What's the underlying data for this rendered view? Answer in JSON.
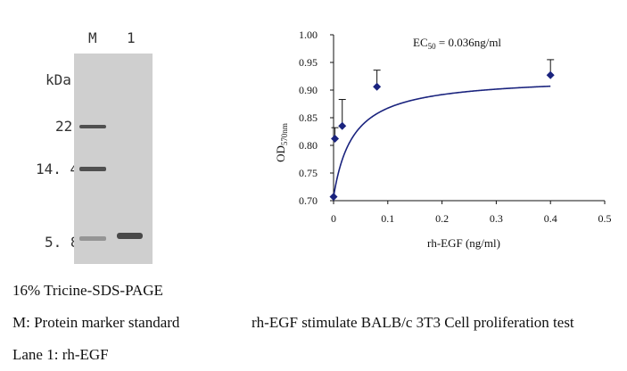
{
  "gel": {
    "lane_header_marker": "M",
    "lane_header_sample": "1",
    "unit_label": "kDa",
    "marker_labels": [
      "22",
      "14. 4",
      "5. 8"
    ],
    "marker_bands_kda": [
      22,
      14.4,
      5.8
    ],
    "sample_band_kda": 5.8,
    "background_color": "#cfcfcf",
    "band_color": "#3a3a3a"
  },
  "captions": {
    "line1": "16% Tricine-SDS-PAGE",
    "line2": "M: Protein marker standard",
    "line3": "Lane 1: rh-EGF",
    "chart_caption": "rh-EGF stimulate BALB/c 3T3 Cell proliferation test"
  },
  "chart_data": {
    "type": "scatter",
    "title": "",
    "annotation_prefix": "EC",
    "annotation_sub": "50",
    "annotation_suffix": " = 0.036ng/ml",
    "xlabel": "rh-EGF (ng/ml)",
    "ylabel_main": "OD",
    "ylabel_sub": "570nm",
    "xlim": [
      0,
      0.5
    ],
    "ylim": [
      0.7,
      1.0
    ],
    "xticks": [
      0,
      0.1,
      0.2,
      0.3,
      0.4,
      0.5
    ],
    "xtick_labels": [
      "0",
      "0.1",
      "0.2",
      "0.3",
      "0.4",
      "0.5"
    ],
    "yticks": [
      0.7,
      0.75,
      0.8,
      0.85,
      0.9,
      0.95,
      1.0
    ],
    "ytick_labels": [
      "0.70",
      "0.75",
      "0.80",
      "0.85",
      "0.90",
      "0.95",
      "1.00"
    ],
    "grid": false,
    "series": [
      {
        "x": [
          0,
          0.0025,
          0.016,
          0.08,
          0.4
        ],
        "y": [
          0.707,
          0.812,
          0.835,
          0.906,
          0.927
        ],
        "error_upper": [
          0.0,
          0.02,
          0.048,
          0.03,
          0.028
        ],
        "marker": "diamond",
        "color": "#1a237e"
      }
    ],
    "fit_curve": {
      "type": "four-parameter-logistic",
      "bottom": 0.707,
      "top": 0.925,
      "ec50": 0.036,
      "hill": 1.0,
      "color": "#1a237e"
    }
  }
}
